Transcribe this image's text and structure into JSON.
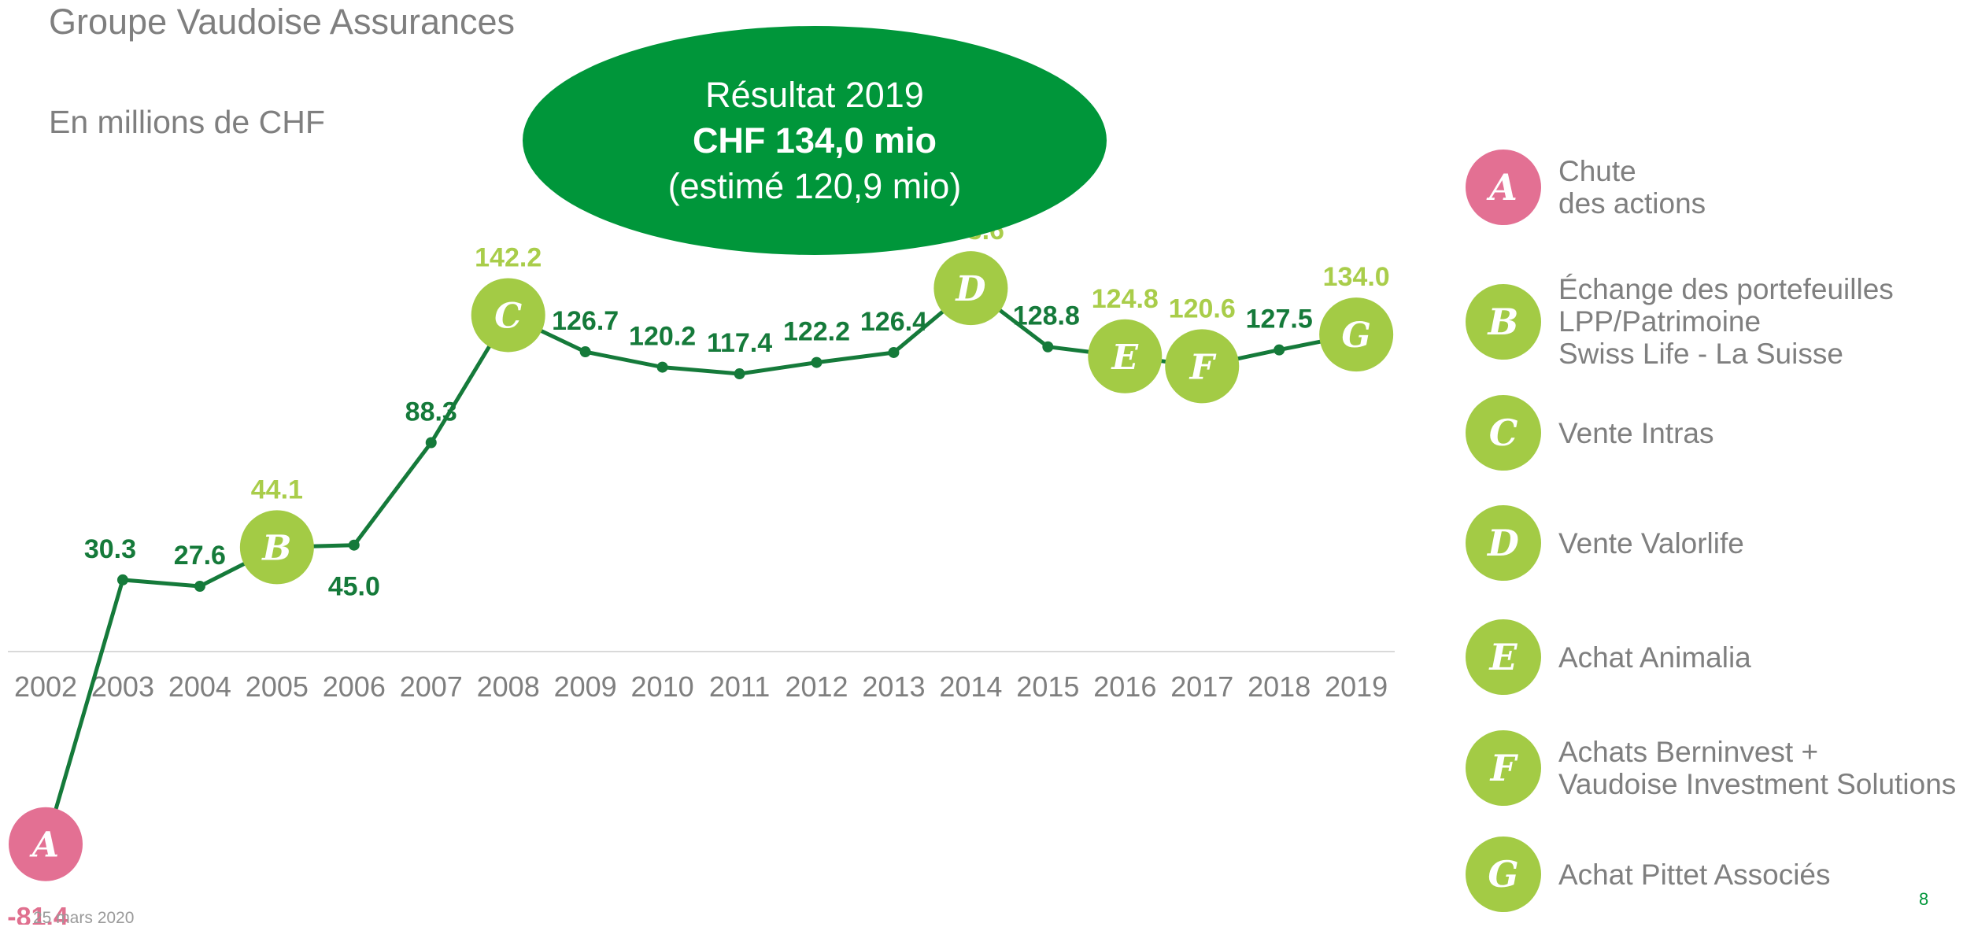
{
  "header": {
    "title": "Groupe Vaudoise Assurances",
    "unit": "En millions de CHF"
  },
  "highlight": {
    "line1": "Résultat 2019",
    "line2": "CHF 134,0 mio",
    "line3": "(estimé 120,9 mio)"
  },
  "chart_data": {
    "type": "line",
    "x": [
      "2002",
      "2003",
      "2004",
      "2005",
      "2006",
      "2007",
      "2008",
      "2009",
      "2010",
      "2011",
      "2012",
      "2013",
      "2014",
      "2015",
      "2016",
      "2017",
      "2018",
      "2019"
    ],
    "values": [
      -81.4,
      30.3,
      27.6,
      44.1,
      45.0,
      88.3,
      142.2,
      126.7,
      120.2,
      117.4,
      122.2,
      126.4,
      153.6,
      128.8,
      124.8,
      120.6,
      127.5,
      134.0
    ],
    "labels": [
      "-81.4",
      "30.3",
      "27.6",
      "44.1",
      "45.0",
      "88.3",
      "142.2",
      "126.7",
      "120.2",
      "117.4",
      "122.2",
      "126.4",
      "153.6",
      "128.8",
      "124.8",
      "120.6",
      "127.5",
      "134.0"
    ],
    "markers": [
      {
        "index": 0,
        "letter": "A"
      },
      {
        "index": 3,
        "letter": "B"
      },
      {
        "index": 6,
        "letter": "C"
      },
      {
        "index": 12,
        "letter": "D"
      },
      {
        "index": 14,
        "letter": "E"
      },
      {
        "index": 15,
        "letter": "F"
      },
      {
        "index": 17,
        "letter": "G"
      }
    ],
    "colors": {
      "line": "#157a3a",
      "label_default": "#157a3a",
      "label_event": "#a9cd4a",
      "label_negative": "#e0708f",
      "marker_positive": "#a3cb45",
      "marker_negative": "#e37093",
      "axis": "#d9d9d9",
      "tick": "#7f7f7f"
    }
  },
  "legend": [
    {
      "letter": "A",
      "text": "Chute\ndes actions",
      "color": "#e37093"
    },
    {
      "letter": "B",
      "text": "Échange des portefeuilles\nLPP/Patrimoine\nSwiss Life - La Suisse",
      "color": "#a3cb45"
    },
    {
      "letter": "C",
      "text": "Vente Intras",
      "color": "#a3cb45"
    },
    {
      "letter": "D",
      "text": "Vente Valorlife",
      "color": "#a3cb45"
    },
    {
      "letter": "E",
      "text": "Achat Animalia",
      "color": "#a3cb45"
    },
    {
      "letter": "F",
      "text": "Achats Berninvest +\nVaudoise Investment Solutions",
      "color": "#a3cb45"
    },
    {
      "letter": "G",
      "text": "Achat Pittet Associés",
      "color": "#a3cb45"
    }
  ],
  "footer": {
    "date": "25 mars 2020",
    "page": "8"
  }
}
